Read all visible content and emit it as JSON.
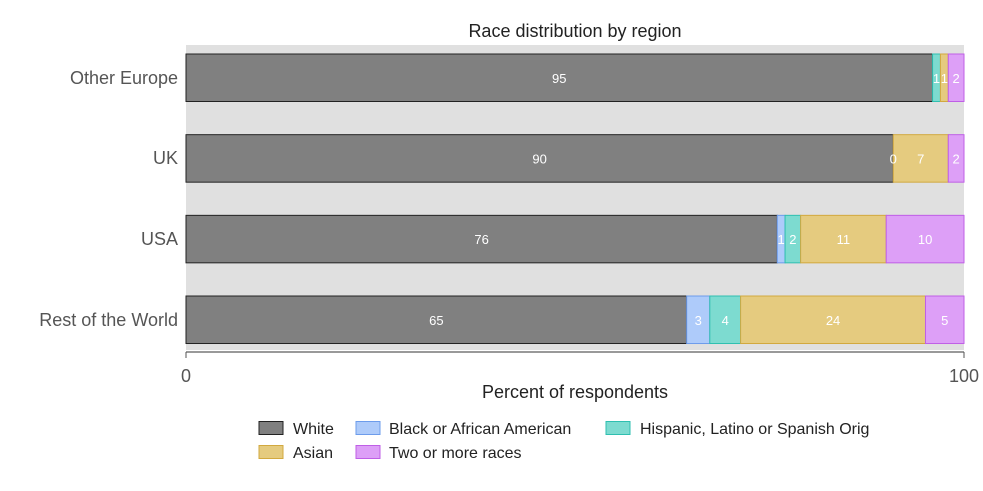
{
  "chart_data": {
    "type": "bar",
    "orientation": "horizontal",
    "stacked": true,
    "title": "Race distribution by region",
    "xlabel": "Percent of respondents",
    "xlim": [
      0,
      100
    ],
    "x_ticks": [
      0,
      100
    ],
    "grid": false,
    "legend_position": "bottom",
    "categories": [
      "Other Europe",
      "UK",
      "USA",
      "Rest of the World"
    ],
    "series": [
      {
        "name": "White",
        "color": "#808080",
        "stroke": "#222222",
        "values": [
          95,
          90,
          76,
          65
        ]
      },
      {
        "name": "Black or African American",
        "color": "#aecbfa",
        "stroke": "#6d9ceb",
        "values": [
          null,
          null,
          1,
          3
        ]
      },
      {
        "name": "Hispanic, Latino or Spanish Orig",
        "color": "#7ddbd0",
        "stroke": "#2fbfb0",
        "values": [
          1,
          0,
          2,
          4
        ]
      },
      {
        "name": "Asian",
        "color": "#e5cb7f",
        "stroke": "#d2a93f",
        "values": [
          1,
          7,
          11,
          24
        ]
      },
      {
        "name": "Two or more races",
        "color": "#dd9ff7",
        "stroke": "#bf5fe6",
        "values": [
          2,
          2,
          10,
          5
        ]
      }
    ]
  }
}
